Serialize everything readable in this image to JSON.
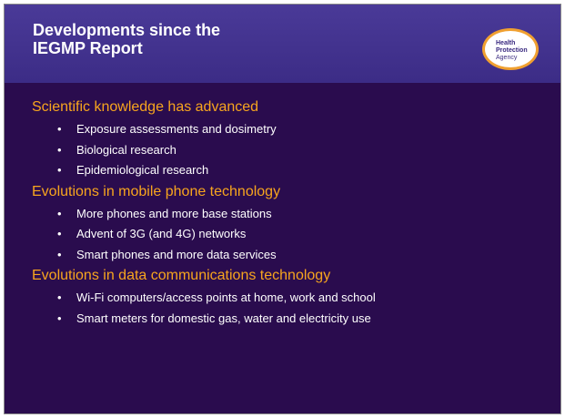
{
  "header": {
    "title_lines": [
      "Developments since the",
      "IEGMP Report"
    ],
    "logo_lines": [
      "Health",
      "Protection",
      "Agency"
    ]
  },
  "sections": [
    {
      "heading": "Scientific knowledge has advanced",
      "bullets": [
        "Exposure assessments and dosimetry",
        "Biological research",
        "Epidemiological research"
      ]
    },
    {
      "heading": "Evolutions in mobile phone technology",
      "bullets": [
        "More phones and more base stations",
        "Advent of 3G (and 4G) networks",
        "Smart phones and more data services"
      ]
    },
    {
      "heading": "Evolutions in data communications technology",
      "bullets": [
        "Wi-Fi computers/access points at home, work and school",
        "Smart meters for domestic gas, water and electricity use"
      ]
    }
  ]
}
